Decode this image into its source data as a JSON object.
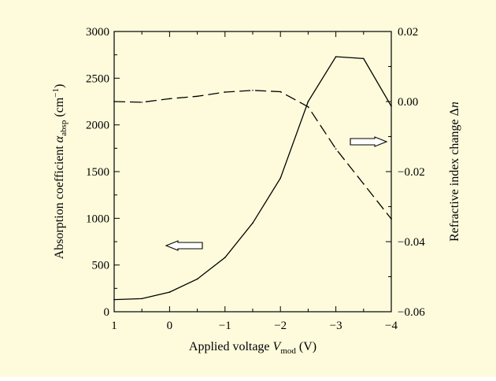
{
  "colors": {
    "background": "#fdfbdc",
    "line": "#000000"
  },
  "chart_data": {
    "type": "line",
    "title": "",
    "xlabel": {
      "main": "Applied voltage ",
      "var": "V",
      "sub": "mod",
      "unit": " (V)"
    },
    "ylabel_left": {
      "main": "Absorption coefficient ",
      "var": "α",
      "sub": "absp",
      "unit_pre": " (cm",
      "sup": "−1",
      "unit_post": ")"
    },
    "ylabel_right": {
      "main": "Refractive index change Δ",
      "var": "n"
    },
    "x_reversed": true,
    "xlim": [
      1,
      -4
    ],
    "ylim_left": [
      0,
      3000
    ],
    "ylim_right": [
      -0.06,
      0.02
    ],
    "x_ticks": [
      1,
      0,
      -1,
      -2,
      -3,
      -4
    ],
    "x_tick_labels": [
      "1",
      "0",
      "−1",
      "−2",
      "−3",
      "−4"
    ],
    "y_left_ticks": [
      0,
      500,
      1000,
      1500,
      2000,
      2500,
      3000
    ],
    "y_left_tick_labels": [
      "0",
      "500",
      "1000",
      "1500",
      "2000",
      "2500",
      "3000"
    ],
    "y_right_ticks": [
      -0.06,
      -0.04,
      -0.02,
      0.0,
      0.02
    ],
    "y_right_tick_labels": [
      "−0.06",
      "−0.04",
      "−0.02",
      "0.00",
      "0.02"
    ],
    "grid": false,
    "series": [
      {
        "axis": "left",
        "style": "solid",
        "x": [
          1,
          0.5,
          0,
          -0.5,
          -1,
          -1.5,
          -2,
          -2.5,
          -3,
          -3.5,
          -4
        ],
        "values": [
          130,
          140,
          210,
          350,
          580,
          950,
          1430,
          2250,
          2730,
          2710,
          2200
        ]
      },
      {
        "axis": "right",
        "style": "dashed",
        "x": [
          1,
          0.5,
          0,
          -0.5,
          -1,
          -1.5,
          -2,
          -2.5,
          -3,
          -3.5,
          -4
        ],
        "values": [
          0.0,
          -0.0002,
          0.0008,
          0.0015,
          0.0027,
          0.0032,
          0.0028,
          -0.0015,
          -0.0135,
          -0.0235,
          -0.0335
        ]
      }
    ],
    "annotations": [
      {
        "type": "arrow",
        "direction": "left",
        "points_to_axis": "left"
      },
      {
        "type": "arrow",
        "direction": "right",
        "points_to_axis": "right"
      }
    ]
  }
}
